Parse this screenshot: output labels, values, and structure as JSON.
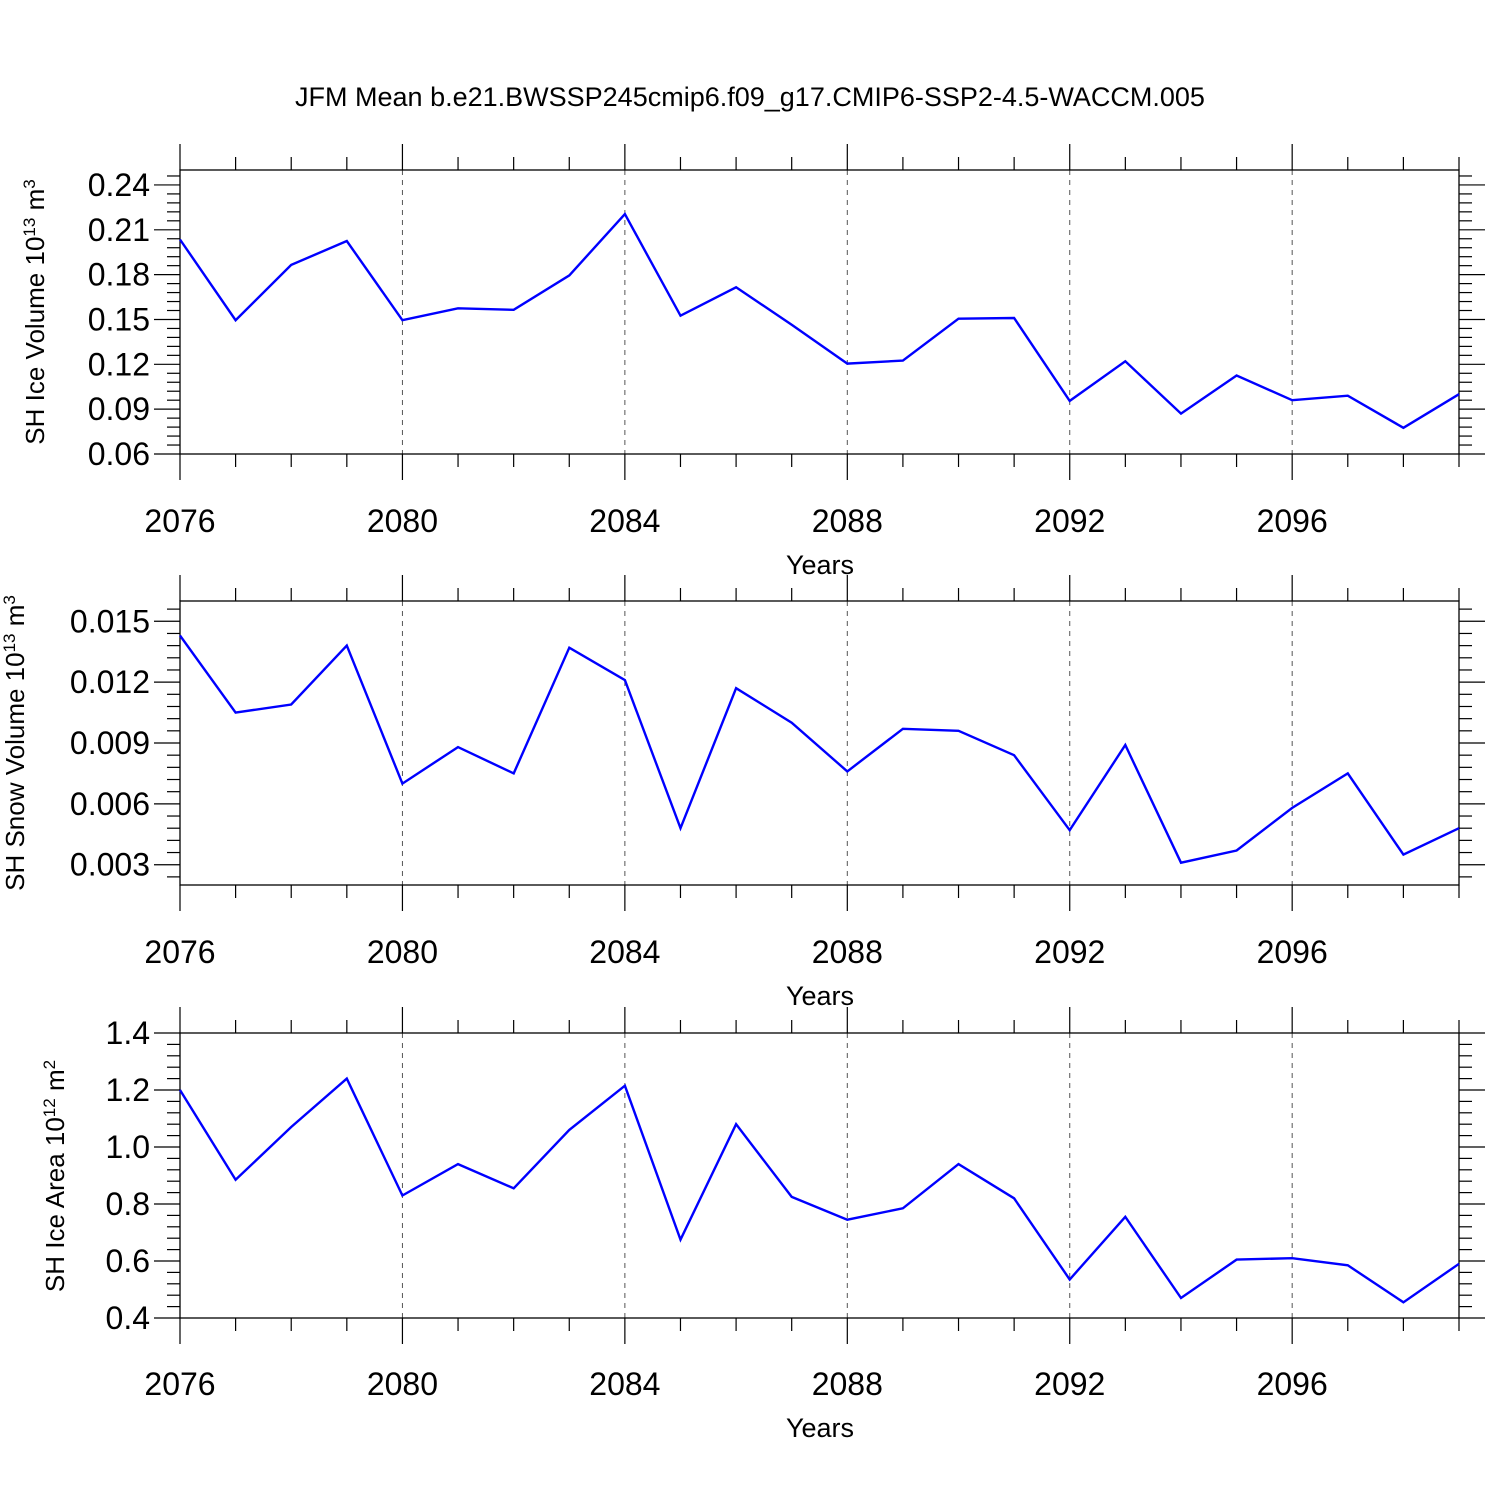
{
  "figure_title": "JFM Mean b.e21.BWSSP245cmip6.f09_g17.CMIP6-SSP2-4.5-WACCM.005",
  "colors": {
    "line": "#0000ff",
    "axes": "#000000",
    "grid": "#555555"
  },
  "chart_data": [
    {
      "type": "line",
      "xlabel": "Years",
      "ylabel": "SH Ice Volume 10",
      "ylabel_exp": "13",
      "ylabel_unit": " m",
      "ylabel_unit_exp": "3",
      "x": [
        2076,
        2077,
        2078,
        2079,
        2080,
        2081,
        2082,
        2083,
        2084,
        2085,
        2086,
        2087,
        2088,
        2089,
        2090,
        2091,
        2092,
        2093,
        2094,
        2095,
        2096,
        2097,
        2098,
        2099
      ],
      "values": [
        0.2035,
        0.1495,
        0.1865,
        0.2025,
        0.1495,
        0.1575,
        0.1565,
        0.1795,
        0.2205,
        0.1525,
        0.1715,
        0.1465,
        0.1205,
        0.1225,
        0.1505,
        0.151,
        0.0955,
        0.122,
        0.087,
        0.1125,
        0.096,
        0.099,
        0.0775,
        0.1
      ],
      "xlim": [
        2076,
        2099
      ],
      "ylim": [
        0.06,
        0.25
      ],
      "xticks": [
        "2076",
        "2080",
        "2084",
        "2088",
        "2092",
        "2096"
      ],
      "yticks": [
        "0.06",
        "0.09",
        "0.12",
        "0.15",
        "0.18",
        "0.21",
        "0.24"
      ],
      "grid": "vertical dashed at major x ticks"
    },
    {
      "type": "line",
      "xlabel": "Years",
      "ylabel": "SH Snow Volume 10",
      "ylabel_exp": "13",
      "ylabel_unit": " m",
      "ylabel_unit_exp": "3",
      "x": [
        2076,
        2077,
        2078,
        2079,
        2080,
        2081,
        2082,
        2083,
        2084,
        2085,
        2086,
        2087,
        2088,
        2089,
        2090,
        2091,
        2092,
        2093,
        2094,
        2095,
        2096,
        2097,
        2098,
        2099
      ],
      "values": [
        0.0143,
        0.0105,
        0.0109,
        0.0138,
        0.007,
        0.0088,
        0.0075,
        0.0137,
        0.0121,
        0.0048,
        0.0117,
        0.01,
        0.0076,
        0.0097,
        0.0096,
        0.0084,
        0.0047,
        0.0089,
        0.0031,
        0.0037,
        0.0058,
        0.0075,
        0.0035,
        0.0048
      ],
      "xlim": [
        2076,
        2099
      ],
      "ylim": [
        0.002,
        0.016
      ],
      "xticks": [
        "2076",
        "2080",
        "2084",
        "2088",
        "2092",
        "2096"
      ],
      "yticks": [
        "0.003",
        "0.006",
        "0.009",
        "0.012",
        "0.015"
      ],
      "grid": "vertical dashed at major x ticks"
    },
    {
      "type": "line",
      "xlabel": "Years",
      "ylabel": "SH Ice Area 10",
      "ylabel_exp": "12",
      "ylabel_unit": " m",
      "ylabel_unit_exp": "2",
      "x": [
        2076,
        2077,
        2078,
        2079,
        2080,
        2081,
        2082,
        2083,
        2084,
        2085,
        2086,
        2087,
        2088,
        2089,
        2090,
        2091,
        2092,
        2093,
        2094,
        2095,
        2096,
        2097,
        2098,
        2099
      ],
      "values": [
        1.2,
        0.885,
        1.07,
        1.24,
        0.83,
        0.94,
        0.855,
        1.06,
        1.215,
        0.675,
        1.08,
        0.825,
        0.745,
        0.785,
        0.94,
        0.82,
        0.535,
        0.755,
        0.47,
        0.605,
        0.61,
        0.585,
        0.455,
        0.59
      ],
      "xlim": [
        2076,
        2099
      ],
      "ylim": [
        0.4,
        1.4
      ],
      "xticks": [
        "2076",
        "2080",
        "2084",
        "2088",
        "2092",
        "2096"
      ],
      "yticks": [
        "0.4",
        "0.6",
        "0.8",
        "1.0",
        "1.2",
        "1.4"
      ],
      "grid": "vertical dashed at major x ticks"
    }
  ]
}
